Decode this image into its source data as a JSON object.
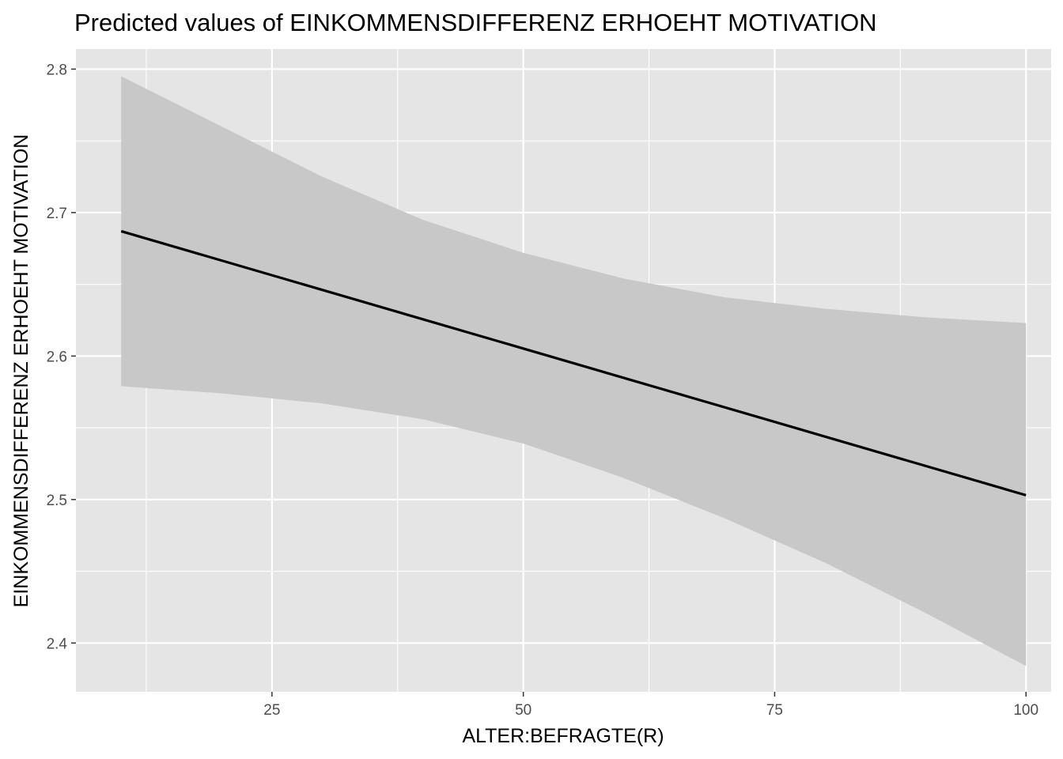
{
  "chart_data": {
    "type": "line",
    "title": "Predicted values of EINKOMMENSDIFFERENZ ERHOEHT MOTIVATION",
    "xlabel": "ALTER:BEFRAGTE(R)",
    "ylabel": "EINKOMMENSDIFFERENZ ERHOEHT MOTIVATION",
    "xlim": [
      5.5,
      102.5
    ],
    "ylim": [
      2.366,
      2.814
    ],
    "x_ticks": [
      25,
      50,
      75,
      100
    ],
    "x_tick_labels": [
      "25",
      "50",
      "75",
      "100"
    ],
    "y_ticks": [
      2.4,
      2.5,
      2.6,
      2.7,
      2.8
    ],
    "y_tick_labels": [
      "2.4",
      "2.5",
      "2.6",
      "2.7",
      "2.8"
    ],
    "x_minor_ticks": [
      12.5,
      37.5,
      62.5,
      87.5
    ],
    "y_minor_ticks": [
      2.45,
      2.55,
      2.65,
      2.75
    ],
    "grid": true,
    "legend": "none",
    "colors": {
      "panel": "#e5e5e5",
      "grid": "#ffffff",
      "ribbon": "#c8c8c8",
      "line": "#000000",
      "tick_text": "#4d4d4d"
    },
    "series": [
      {
        "x": [
          10,
          100
        ],
        "y": [
          2.687,
          2.503
        ],
        "ci_x": [
          10,
          20,
          30,
          40,
          50,
          60,
          70,
          80,
          90,
          100
        ],
        "ci_lower": [
          2.579,
          2.574,
          2.567,
          2.556,
          2.539,
          2.515,
          2.487,
          2.456,
          2.421,
          2.384
        ],
        "ci_upper": [
          2.795,
          2.76,
          2.725,
          2.695,
          2.672,
          2.654,
          2.641,
          2.633,
          2.627,
          2.623
        ]
      }
    ]
  }
}
